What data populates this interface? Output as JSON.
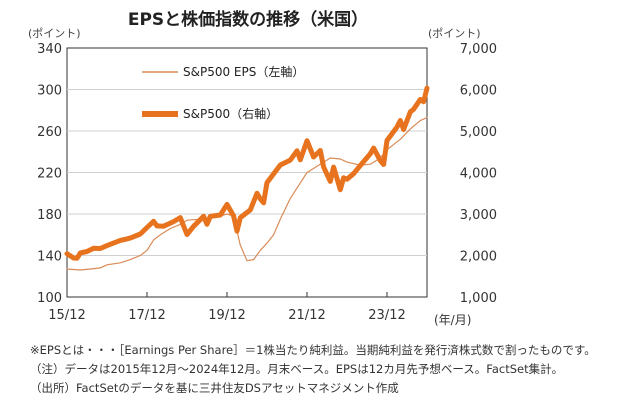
{
  "chart_data": {
    "type": "line",
    "title": "EPSと株価指数の推移（米国）",
    "left_unit": "(ポイント)",
    "right_unit": "(ポイント)",
    "x_unit": "(年/月)",
    "x_ticks": [
      "15/12",
      "17/12",
      "19/12",
      "21/12",
      "23/12"
    ],
    "left_axis": {
      "ylim": [
        100,
        340
      ],
      "ticks": [
        "100",
        "140",
        "180",
        "220",
        "260",
        "300",
        "340"
      ]
    },
    "right_axis": {
      "ylim": [
        1000,
        7000
      ],
      "ticks": [
        "1,000",
        "2,000",
        "3,000",
        "4,000",
        "5,000",
        "6,000",
        "7,000"
      ]
    },
    "x_range": [
      2015.917,
      2024.917
    ],
    "series": [
      {
        "name": "S&P500 EPS（左軸）",
        "axis": "left",
        "color": "#d98a55",
        "points": [
          [
            2015.917,
            127
          ],
          [
            2016.25,
            126
          ],
          [
            2016.5,
            127
          ],
          [
            2016.75,
            128
          ],
          [
            2016.917,
            131
          ],
          [
            2017.25,
            133
          ],
          [
            2017.5,
            136
          ],
          [
            2017.75,
            140
          ],
          [
            2017.917,
            145
          ],
          [
            2018.083,
            155
          ],
          [
            2018.25,
            160
          ],
          [
            2018.5,
            166
          ],
          [
            2018.75,
            170
          ],
          [
            2018.917,
            174
          ],
          [
            2019.25,
            175
          ],
          [
            2019.5,
            176
          ],
          [
            2019.75,
            178
          ],
          [
            2019.917,
            180
          ],
          [
            2020.083,
            178
          ],
          [
            2020.25,
            150
          ],
          [
            2020.417,
            135
          ],
          [
            2020.583,
            136
          ],
          [
            2020.75,
            145
          ],
          [
            2020.917,
            152
          ],
          [
            2021.083,
            160
          ],
          [
            2021.25,
            175
          ],
          [
            2021.5,
            195
          ],
          [
            2021.75,
            210
          ],
          [
            2021.917,
            220
          ],
          [
            2022.25,
            228
          ],
          [
            2022.5,
            234
          ],
          [
            2022.75,
            233
          ],
          [
            2022.917,
            230
          ],
          [
            2023.25,
            227
          ],
          [
            2023.5,
            228
          ],
          [
            2023.75,
            234
          ],
          [
            2023.917,
            242
          ],
          [
            2024.25,
            252
          ],
          [
            2024.5,
            262
          ],
          [
            2024.75,
            270
          ],
          [
            2024.917,
            273
          ]
        ]
      },
      {
        "name": "S&P500（右軸）",
        "axis": "right",
        "color": "#e8731e",
        "points": [
          [
            2015.917,
            2044
          ],
          [
            2016.083,
            1940
          ],
          [
            2016.167,
            1932
          ],
          [
            2016.25,
            2060
          ],
          [
            2016.417,
            2097
          ],
          [
            2016.583,
            2174
          ],
          [
            2016.75,
            2168
          ],
          [
            2016.917,
            2239
          ],
          [
            2017.25,
            2363
          ],
          [
            2017.5,
            2420
          ],
          [
            2017.75,
            2519
          ],
          [
            2017.917,
            2674
          ],
          [
            2018.083,
            2824
          ],
          [
            2018.167,
            2714
          ],
          [
            2018.333,
            2705
          ],
          [
            2018.583,
            2816
          ],
          [
            2018.75,
            2914
          ],
          [
            2018.833,
            2711
          ],
          [
            2018.917,
            2507
          ],
          [
            2019.083,
            2704
          ],
          [
            2019.333,
            2945
          ],
          [
            2019.417,
            2752
          ],
          [
            2019.5,
            2942
          ],
          [
            2019.75,
            2977
          ],
          [
            2019.917,
            3231
          ],
          [
            2020.083,
            2954
          ],
          [
            2020.167,
            2585
          ],
          [
            2020.25,
            2912
          ],
          [
            2020.5,
            3100
          ],
          [
            2020.667,
            3500
          ],
          [
            2020.75,
            3363
          ],
          [
            2020.833,
            3270
          ],
          [
            2020.917,
            3756
          ],
          [
            2021.25,
            4181
          ],
          [
            2021.5,
            4298
          ],
          [
            2021.667,
            4523
          ],
          [
            2021.75,
            4307
          ],
          [
            2021.917,
            4766
          ],
          [
            2022.083,
            4374
          ],
          [
            2022.25,
            4530
          ],
          [
            2022.333,
            4132
          ],
          [
            2022.5,
            3785
          ],
          [
            2022.583,
            4130
          ],
          [
            2022.75,
            3585
          ],
          [
            2022.833,
            3872
          ],
          [
            2022.917,
            3839
          ],
          [
            2023.083,
            3970
          ],
          [
            2023.25,
            4169
          ],
          [
            2023.5,
            4450
          ],
          [
            2023.583,
            4589
          ],
          [
            2023.75,
            4288
          ],
          [
            2023.833,
            4193
          ],
          [
            2023.917,
            4770
          ],
          [
            2024.167,
            5096
          ],
          [
            2024.25,
            5254
          ],
          [
            2024.333,
            5036
          ],
          [
            2024.5,
            5460
          ],
          [
            2024.583,
            5522
          ],
          [
            2024.75,
            5762
          ],
          [
            2024.833,
            5705
          ],
          [
            2024.917,
            6032
          ]
        ]
      }
    ]
  },
  "notes": [
    "※EPSとは・・・［Earnings Per Share］＝1株当たり純利益。当期純利益を発行済株式数で割ったものです。",
    "（注）データは2015年12月～2024年12月。月末ベース。EPSは12カ月先予想ベース。FactSet集計。",
    "（出所）FactSetのデータを基に三井住友DSアセットマネジメント作成"
  ]
}
